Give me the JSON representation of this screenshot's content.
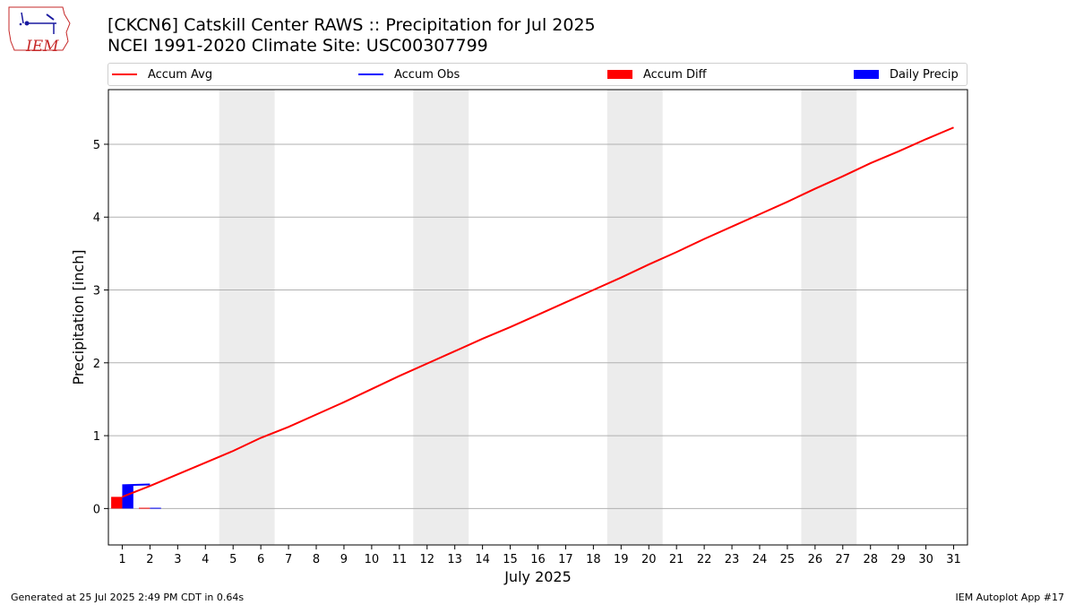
{
  "title_line1": "[CKCN6] Catskill Center RAWS :: Precipitation for Jul 2025",
  "title_line2": "NCEI 1991-2020 Climate Site: USC00307799",
  "logo_text": "IEM",
  "footer_left": "Generated at 25 Jul 2025 2:49 PM CDT in 0.64s",
  "footer_right": "IEM Autoplot App #17",
  "legend": [
    {
      "label": "Accum Avg",
      "kind": "line",
      "color": "#ff0000"
    },
    {
      "label": "Accum Obs",
      "kind": "line",
      "color": "#0000ff"
    },
    {
      "label": "Accum Diff",
      "kind": "patch",
      "color": "#ff0000"
    },
    {
      "label": "Daily Precip",
      "kind": "patch",
      "color": "#0000ff"
    }
  ],
  "chart_data": {
    "type": "line",
    "xlabel": "July 2025",
    "ylabel": "Precipitation [inch]",
    "xlim": [
      0.5,
      31.5
    ],
    "ylim": [
      -0.5,
      5.75
    ],
    "x_ticks": [
      1,
      2,
      3,
      4,
      5,
      6,
      7,
      8,
      9,
      10,
      11,
      12,
      13,
      14,
      15,
      16,
      17,
      18,
      19,
      20,
      21,
      22,
      23,
      24,
      25,
      26,
      27,
      28,
      29,
      30,
      31
    ],
    "y_ticks": [
      0,
      1,
      2,
      3,
      4,
      5
    ],
    "grid": "horizontal",
    "weekend_shading": [
      [
        5,
        6
      ],
      [
        12,
        13
      ],
      [
        19,
        20
      ],
      [
        26,
        27
      ]
    ],
    "series": [
      {
        "name": "Accum Avg",
        "kind": "line",
        "color": "#ff0000",
        "x": [
          1,
          2,
          3,
          4,
          5,
          6,
          7,
          8,
          9,
          10,
          11,
          12,
          13,
          14,
          15,
          16,
          17,
          18,
          19,
          20,
          21,
          22,
          23,
          24,
          25,
          26,
          27,
          28,
          29,
          30,
          31
        ],
        "y": [
          0.16,
          0.31,
          0.47,
          0.63,
          0.79,
          0.97,
          1.12,
          1.29,
          1.46,
          1.64,
          1.82,
          1.99,
          2.16,
          2.33,
          2.49,
          2.66,
          2.83,
          3.0,
          3.17,
          3.35,
          3.52,
          3.7,
          3.87,
          4.04,
          4.21,
          4.39,
          4.56,
          4.74,
          4.9,
          5.07,
          5.23
        ]
      },
      {
        "name": "Accum Obs",
        "kind": "line",
        "color": "#0000ff",
        "x": [
          1,
          2
        ],
        "y": [
          0.32,
          0.33
        ]
      },
      {
        "name": "Accum Diff",
        "kind": "bar",
        "color": "#ff0000",
        "x": [
          1,
          2
        ],
        "y": [
          0.16,
          0.01
        ]
      },
      {
        "name": "Daily Precip",
        "kind": "bar",
        "color": "#0000ff",
        "x": [
          1,
          2
        ],
        "y": [
          0.32,
          0.01
        ]
      }
    ]
  }
}
